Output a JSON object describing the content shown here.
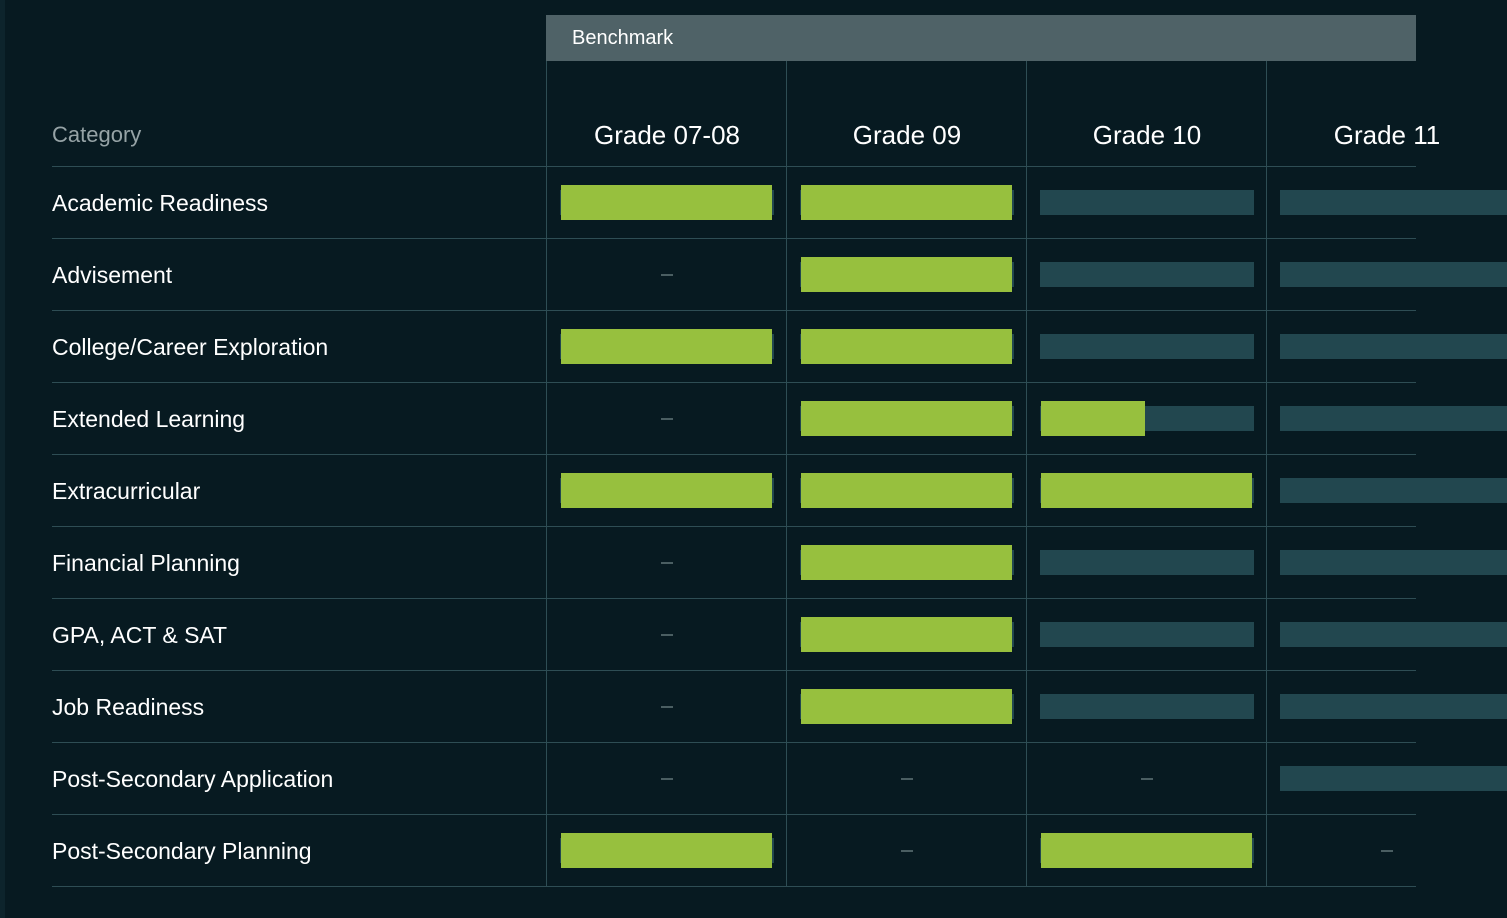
{
  "benchmark_label": "Benchmark",
  "category_header": "Category",
  "grades": [
    "Grade 07-08",
    "Grade 09",
    "Grade 10",
    "Grade 11"
  ],
  "colors": {
    "background": "#071a21",
    "complete": "#97c03e",
    "track": "#22474f",
    "header_band": "#4f6267",
    "grid": "#2e4d54"
  },
  "rows": [
    {
      "label": "Academic Readiness",
      "progress": [
        1,
        1,
        0,
        0
      ]
    },
    {
      "label": "Advisement",
      "progress": [
        null,
        1,
        0,
        0
      ]
    },
    {
      "label": "College/Career Exploration",
      "progress": [
        1,
        1,
        0,
        0
      ]
    },
    {
      "label": "Extended Learning",
      "progress": [
        null,
        1,
        0.5,
        0
      ]
    },
    {
      "label": "Extracurricular",
      "progress": [
        1,
        1,
        1,
        0
      ]
    },
    {
      "label": "Financial Planning",
      "progress": [
        null,
        1,
        0,
        0
      ]
    },
    {
      "label": "GPA, ACT & SAT",
      "progress": [
        null,
        1,
        0,
        0
      ]
    },
    {
      "label": "Job Readiness",
      "progress": [
        null,
        1,
        0,
        0
      ]
    },
    {
      "label": "Post-Secondary Application",
      "progress": [
        null,
        null,
        null,
        0
      ]
    },
    {
      "label": "Post-Secondary Planning",
      "progress": [
        1,
        null,
        1,
        null
      ]
    }
  ]
}
